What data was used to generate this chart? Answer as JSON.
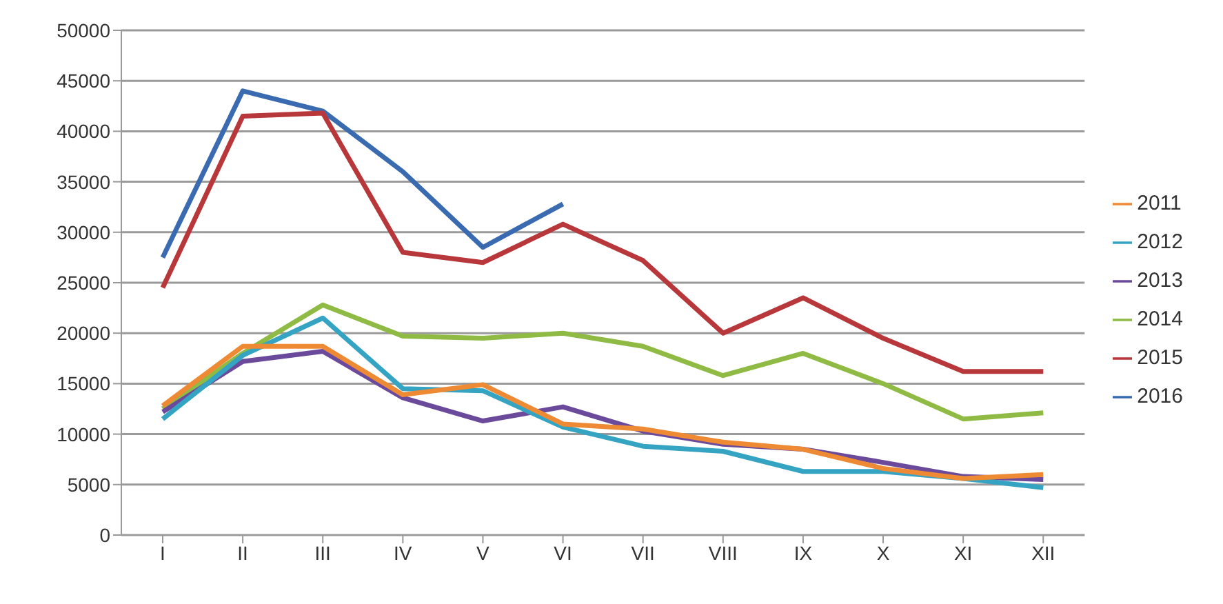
{
  "chart_data": {
    "type": "line",
    "categories": [
      "I",
      "II",
      "III",
      "IV",
      "V",
      "VI",
      "VII",
      "VIII",
      "IX",
      "X",
      "XI",
      "XII"
    ],
    "series": [
      {
        "name": "2016",
        "color": "#3a6bb0",
        "values": [
          27500,
          44000,
          42000,
          36000,
          28500,
          32800,
          null,
          null,
          null,
          null,
          null,
          null
        ]
      },
      {
        "name": "2015",
        "color": "#b8373a",
        "values": [
          24500,
          41500,
          41800,
          28000,
          27000,
          30800,
          27200,
          20000,
          23500,
          19500,
          16200,
          16200
        ]
      },
      {
        "name": "2014",
        "color": "#8fbb45",
        "values": [
          12500,
          18000,
          22800,
          19700,
          19500,
          20000,
          18700,
          15800,
          18000,
          15000,
          11500,
          12100
        ]
      },
      {
        "name": "2013",
        "color": "#6b4a9b",
        "values": [
          12200,
          17200,
          18200,
          13600,
          11300,
          12700,
          10300,
          9000,
          8500,
          7200,
          5800,
          5500
        ]
      },
      {
        "name": "2012",
        "color": "#35a4c2",
        "values": [
          11500,
          17800,
          21500,
          14500,
          14300,
          10700,
          8800,
          8300,
          6300,
          6300,
          5600,
          4700
        ]
      },
      {
        "name": "2011",
        "color": "#ee8a34",
        "values": [
          12800,
          18700,
          18700,
          13900,
          14900,
          11000,
          10500,
          9200,
          8500,
          6600,
          5600,
          6000
        ]
      }
    ],
    "ylim": [
      0,
      50000
    ],
    "yticks": [
      0,
      5000,
      10000,
      15000,
      20000,
      25000,
      30000,
      35000,
      40000,
      45000,
      50000
    ],
    "grid": "y",
    "legend": "right",
    "marker": "none",
    "line_style": "solid"
  }
}
